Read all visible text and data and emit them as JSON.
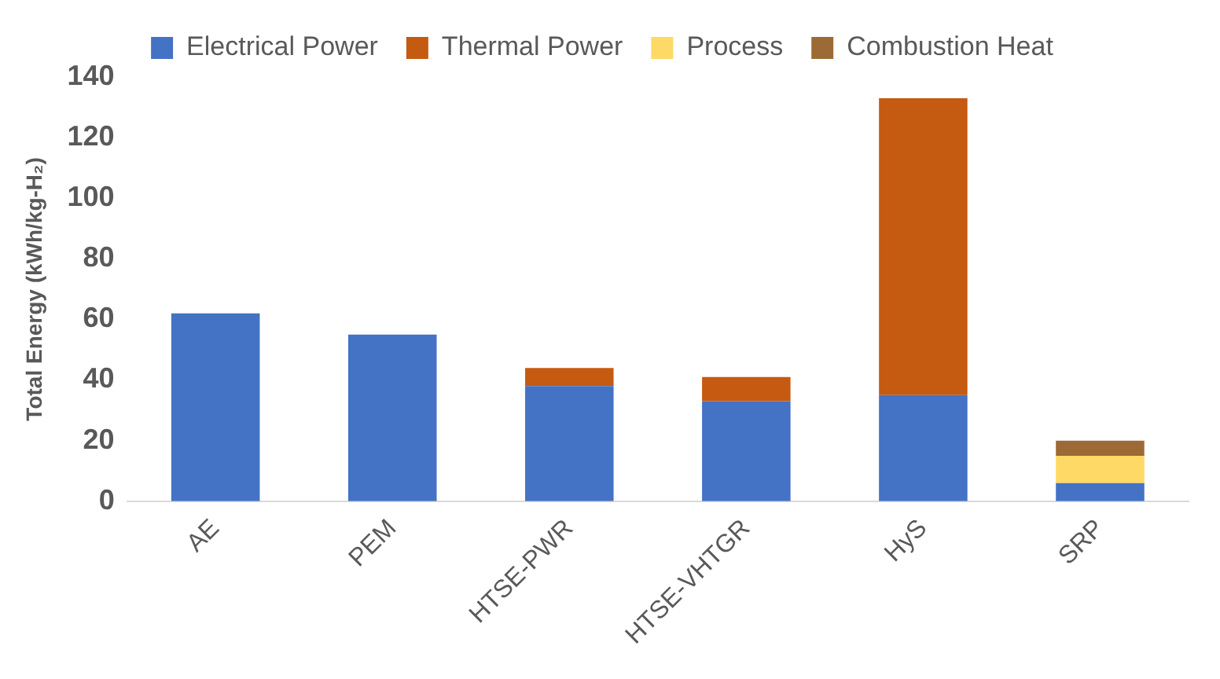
{
  "chart_data": {
    "type": "bar",
    "stacked": true,
    "ylabel": "Total Energy (kWh/kg-H₂)",
    "categories": [
      "AE",
      "PEM",
      "HTSE-PWR",
      "HTSE-VHTGR",
      "HyS",
      "SRP"
    ],
    "series": [
      {
        "name": "Electrical Power",
        "color": "#4472c4",
        "values": [
          62,
          55,
          38,
          33,
          35,
          6
        ]
      },
      {
        "name": "Thermal Power",
        "color": "#c55a11",
        "values": [
          null,
          null,
          6,
          8,
          98,
          null
        ]
      },
      {
        "name": "Process",
        "color": "#ffd966",
        "values": [
          null,
          null,
          null,
          null,
          null,
          9
        ]
      },
      {
        "name": "Combustion Heat",
        "color": "#9c6a35",
        "values": [
          null,
          null,
          null,
          null,
          null,
          5
        ]
      }
    ],
    "ylim": [
      0,
      140
    ],
    "yticks": [
      0,
      20,
      40,
      60,
      80,
      100,
      120,
      140
    ],
    "grid": false,
    "legend": "top"
  }
}
